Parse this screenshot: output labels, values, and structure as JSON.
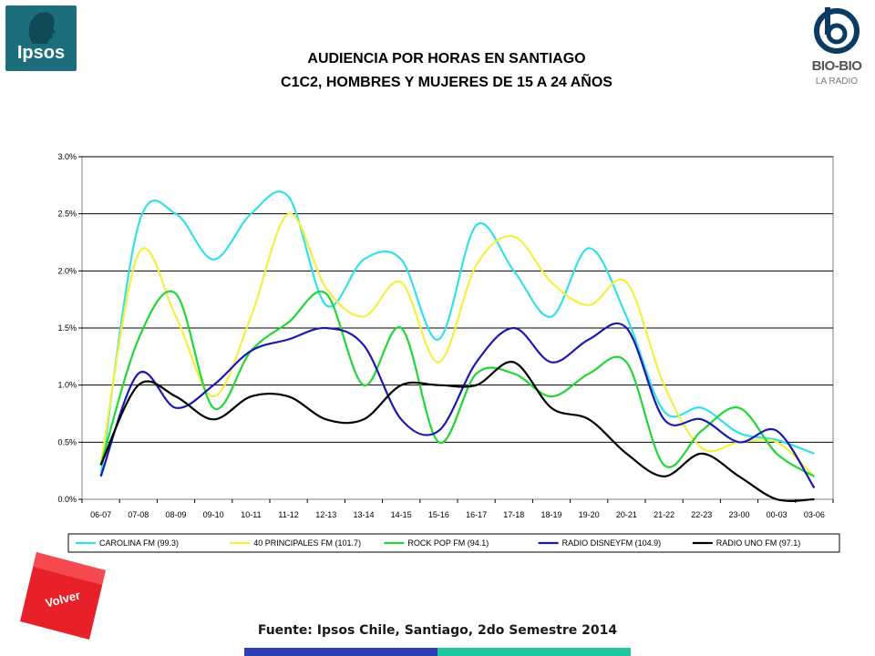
{
  "header": {
    "logo_left_text": "Ipsos",
    "logo_right_text": "BIO-BIO",
    "logo_right_sub": "LA RADIO",
    "title_line1": "AUDIENCIA POR HORAS EN SANTIAGO",
    "title_line2": "C1C2, HOMBRES Y MUJERES DE 15 A 24 AÑOS"
  },
  "footer": {
    "volver_label": "Volver",
    "source": "Fuente: Ipsos Chile, Santiago, 2do Semestre 2014"
  },
  "colors": {
    "ipsos_teal": "#1d6e7d",
    "volver_red": "#e8202a",
    "bar_blue": "#2e3eb8",
    "bar_green": "#1ec7a0"
  },
  "chart_data": {
    "type": "line",
    "title": "",
    "xlabel": "",
    "ylabel": "",
    "ylim": [
      0,
      0.03
    ],
    "yticks": [
      "0.0%",
      "0.5%",
      "1.0%",
      "1.5%",
      "2.0%",
      "2.5%",
      "3.0%"
    ],
    "grid": true,
    "legend_position": "bottom",
    "categories": [
      "06-07",
      "07-08",
      "08-09",
      "09-10",
      "10-11",
      "11-12",
      "12-13",
      "13-14",
      "14-15",
      "15-16",
      "16-17",
      "17-18",
      "18-19",
      "19-20",
      "20-21",
      "21-22",
      "22-23",
      "23-00",
      "00-03",
      "03-06"
    ],
    "series": [
      {
        "name": "CAROLINA FM (99.3)",
        "color": "#33e0e8",
        "values": [
          0.002,
          0.024,
          0.025,
          0.021,
          0.025,
          0.0265,
          0.017,
          0.021,
          0.021,
          0.014,
          0.024,
          0.02,
          0.016,
          0.022,
          0.016,
          0.0077,
          0.008,
          0.0058,
          0.0052,
          0.004
        ]
      },
      {
        "name": "40 PRINCIPALES FM (101.7)",
        "color": "#f4f040",
        "values": [
          0.003,
          0.0215,
          0.016,
          0.009,
          0.016,
          0.025,
          0.0185,
          0.016,
          0.019,
          0.012,
          0.0205,
          0.023,
          0.019,
          0.017,
          0.019,
          0.01,
          0.0045,
          0.005,
          0.005,
          0.002
        ]
      },
      {
        "name": "ROCK   POP FM (94.1)",
        "color": "#22d635",
        "values": [
          0.003,
          0.014,
          0.018,
          0.008,
          0.013,
          0.0155,
          0.018,
          0.01,
          0.015,
          0.005,
          0.011,
          0.011,
          0.009,
          0.011,
          0.012,
          0.003,
          0.006,
          0.008,
          0.004,
          0.002
        ]
      },
      {
        "name": "RADIO DISNEYFM (104.9)",
        "color": "#1a1ab0",
        "values": [
          0.002,
          0.011,
          0.008,
          0.01,
          0.013,
          0.014,
          0.015,
          0.0135,
          0.007,
          0.006,
          0.012,
          0.015,
          0.012,
          0.014,
          0.015,
          0.007,
          0.007,
          0.005,
          0.006,
          0.001
        ]
      },
      {
        "name": "RADIO UNO FM (97.1)",
        "color": "#000000",
        "values": [
          0.003,
          0.01,
          0.009,
          0.007,
          0.009,
          0.009,
          0.007,
          0.007,
          0.01,
          0.01,
          0.01,
          0.012,
          0.008,
          0.007,
          0.004,
          0.002,
          0.004,
          0.002,
          0.0,
          0.0
        ]
      }
    ]
  }
}
